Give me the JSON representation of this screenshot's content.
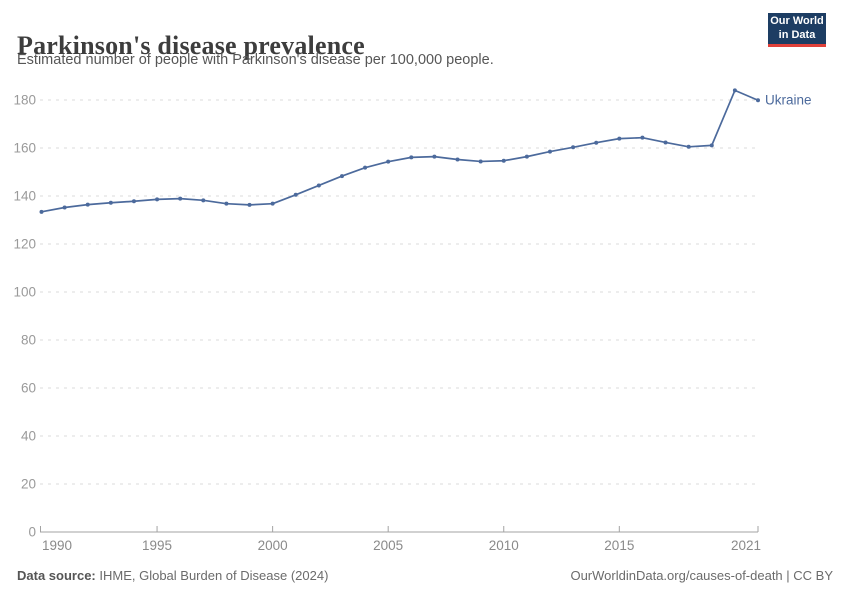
{
  "header": {
    "title": "Parkinson's disease prevalence",
    "subtitle": "Estimated number of people with Parkinson's disease per 100,000 people."
  },
  "logo": {
    "line1": "Our World",
    "line2": "in Data",
    "bg_color": "#1d3d63",
    "accent_color": "#e0413a"
  },
  "footer": {
    "source_label": "Data source:",
    "source_text": " IHME, Global Burden of Disease (2024)",
    "right_text": "OurWorldinData.org/causes-of-death | CC BY"
  },
  "chart_data": {
    "type": "line",
    "title": "Parkinson's disease prevalence",
    "subtitle": "Estimated number of people with Parkinson's disease per 100,000 people.",
    "xlabel": "",
    "ylabel": "",
    "xlim": [
      1990,
      2021
    ],
    "ylim": [
      0,
      180
    ],
    "grid": "horizontal-dashed",
    "legend_position": "end-of-line-label",
    "xticks": [
      1990,
      1995,
      2000,
      2005,
      2010,
      2015,
      2021
    ],
    "yticks": [
      0,
      20,
      40,
      60,
      80,
      100,
      120,
      140,
      160,
      180
    ],
    "x": [
      1990,
      1991,
      1992,
      1993,
      1994,
      1995,
      1996,
      1997,
      1998,
      1999,
      2000,
      2001,
      2002,
      2003,
      2004,
      2005,
      2006,
      2007,
      2008,
      2009,
      2010,
      2011,
      2012,
      2013,
      2014,
      2015,
      2016,
      2017,
      2018,
      2019,
      2020,
      2021
    ],
    "series": [
      {
        "name": "Ukraine",
        "color": "#4C6A9C",
        "values": [
          133.4,
          135.2,
          136.4,
          137.2,
          137.8,
          138.6,
          138.9,
          138.2,
          136.8,
          136.3,
          136.8,
          140.5,
          144.4,
          148.3,
          151.8,
          154.3,
          156.1,
          156.4,
          155.2,
          154.4,
          154.7,
          156.4,
          158.5,
          160.3,
          162.2,
          163.9,
          164.3,
          162.3,
          160.5,
          161.1,
          184.0,
          179.9
        ]
      }
    ]
  }
}
